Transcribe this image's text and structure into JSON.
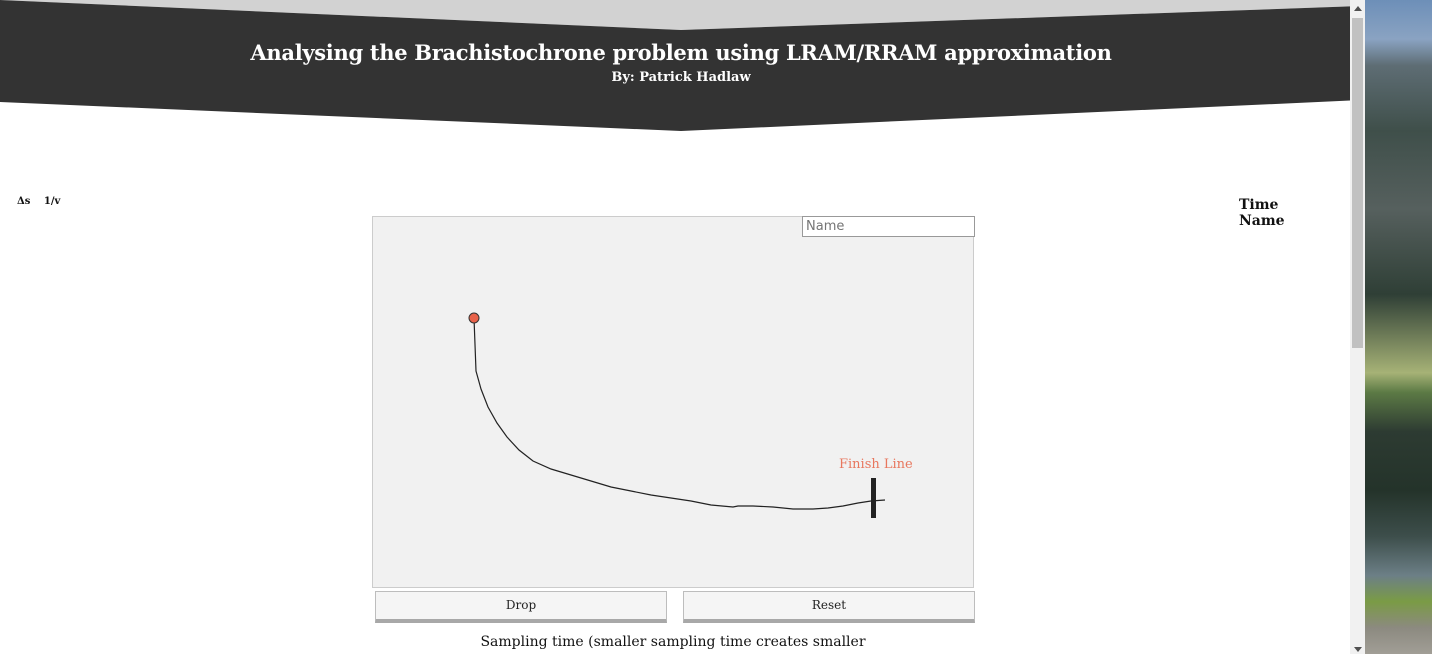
{
  "header": {
    "title": "Analysing the Brachistochrone problem using LRAM/RRAM approximation",
    "subtitle": "By: Patrick Hadlaw"
  },
  "left_table": {
    "col1": "Δs",
    "col2": "1/v"
  },
  "right_table": {
    "col1": "Time",
    "col2": "Name"
  },
  "canvas": {
    "name_placeholder": "Name",
    "finish_label": "Finish Line",
    "ball_color": "#e8624a",
    "finish_label_color": "#e8775e"
  },
  "buttons": {
    "drop": "Drop",
    "reset": "Reset"
  },
  "sampling_text": "Sampling time (smaller sampling time creates smaller"
}
